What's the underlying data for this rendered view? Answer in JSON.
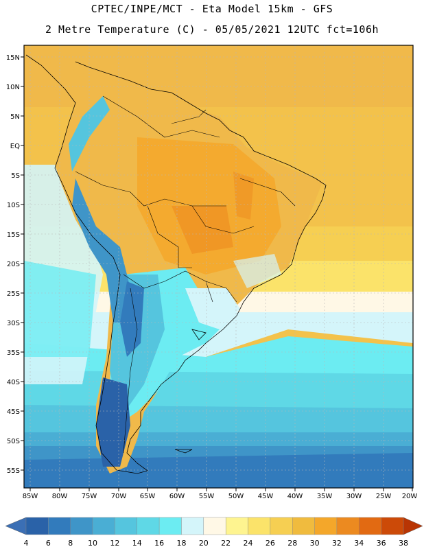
{
  "header": {
    "line1": "CPTEC/INPE/MCT -  Eta Model 15km - GFS",
    "line2": "2 Metre Temperature (C) - 05/05/2021 12UTC fct=106h"
  },
  "map": {
    "region": "South America",
    "lon_range": [
      -85,
      -20
    ],
    "lat_range": [
      -58,
      17
    ],
    "lat_ticks": [
      "15N",
      "10N",
      "5N",
      "EQ",
      "5S",
      "10S",
      "15S",
      "20S",
      "25S",
      "30S",
      "35S",
      "40S",
      "45S",
      "50S",
      "55S"
    ],
    "lon_ticks": [
      "85W",
      "80W",
      "75W",
      "70W",
      "65W",
      "60W",
      "55W",
      "50W",
      "45W",
      "40W",
      "35W",
      "30W",
      "25W",
      "20W"
    ]
  },
  "colorbar": {
    "labels": [
      "4",
      "6",
      "8",
      "10",
      "12",
      "14",
      "16",
      "18",
      "20",
      "22",
      "24",
      "26",
      "28",
      "30",
      "32",
      "34",
      "36",
      "38"
    ],
    "colors": [
      "#2a62a8",
      "#327bbc",
      "#3f95c8",
      "#4aaed4",
      "#55c5de",
      "#5fd8e6",
      "#6cecf2",
      "#d4f5fa",
      "#fff8e6",
      "#fef490",
      "#fbe36a",
      "#f6cf52",
      "#f0bb3e",
      "#f4a72a",
      "#ec8a20",
      "#e26a12",
      "#cc4a08",
      "#b53504"
    ],
    "arrow_low": "#3b6fb5",
    "arrow_high": "#b83504"
  }
}
